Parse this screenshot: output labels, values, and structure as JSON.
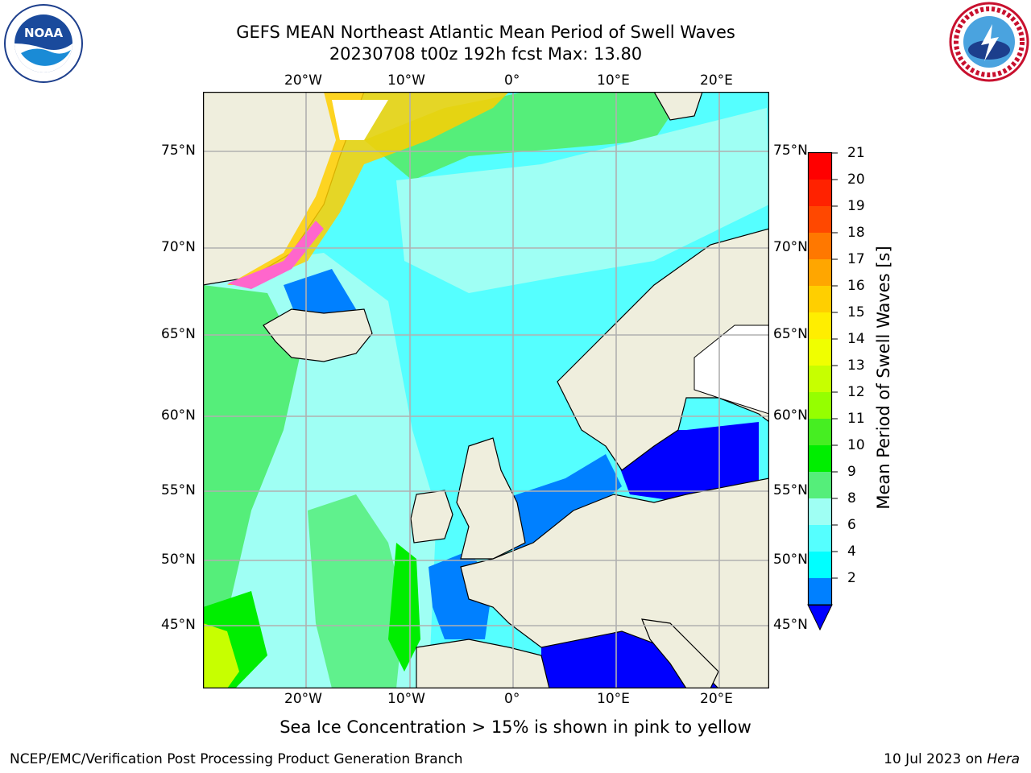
{
  "header": {
    "title_line1": "GEFS MEAN Northeast Atlantic Mean Period of Swell Waves",
    "title_line2": "20230708 t00z 192h fcst   Max: 13.80",
    "left_logo": {
      "name": "noaa-logo",
      "text": "NOAA"
    },
    "right_logo": {
      "name": "national-weather-service-logo",
      "ring_text": "NATIONAL WEATHER SERVICE"
    }
  },
  "map": {
    "lon_labels": [
      "20°W",
      "10°W",
      "0°",
      "10°E",
      "20°E"
    ],
    "lat_labels": [
      "75°N",
      "70°N",
      "65°N",
      "60°N",
      "55°N",
      "50°N",
      "45°N"
    ],
    "colors": {
      "land": "#efeedd",
      "ice_free_sea_white": "#ffffff",
      "grid": "#b0b0b0",
      "coast": "#000000"
    }
  },
  "colorbar": {
    "label": "Mean Period of Swell Waves [s]",
    "ticks": [
      "21",
      "20",
      "19",
      "18",
      "17",
      "16",
      "15",
      "14",
      "13",
      "12",
      "11",
      "10",
      "9",
      "8",
      "6",
      "4",
      "2"
    ],
    "levels": [
      {
        "max": "21",
        "color": "#ff0000"
      },
      {
        "max": "20",
        "color": "#ff2200"
      },
      {
        "max": "19",
        "color": "#ff4800"
      },
      {
        "max": "18",
        "color": "#ff7800"
      },
      {
        "max": "17",
        "color": "#ffa600"
      },
      {
        "max": "16",
        "color": "#ffcf00"
      },
      {
        "max": "15",
        "color": "#ffee00"
      },
      {
        "max": "14",
        "color": "#f0ff00"
      },
      {
        "max": "13",
        "color": "#c7ff00"
      },
      {
        "max": "12",
        "color": "#95ff00"
      },
      {
        "max": "11",
        "color": "#46ee22"
      },
      {
        "max": "10",
        "color": "#00ee00"
      },
      {
        "max": "9",
        "color": "#55ee7a"
      },
      {
        "max": "8",
        "color": "#9ffff4"
      },
      {
        "max": "6",
        "color": "#55ffff"
      },
      {
        "max": "4",
        "color": "#00ffff"
      },
      {
        "max": "2",
        "color": "#0080ff"
      }
    ],
    "extend_color": "#0000ff"
  },
  "caption": "Sea Ice Concentration > 15% is shown in pink to yellow",
  "footer": {
    "left": "NCEP/EMC/Verification Post Processing Product Generation Branch",
    "right_date": "10 Jul 2023 on",
    "right_host": "Hera"
  }
}
